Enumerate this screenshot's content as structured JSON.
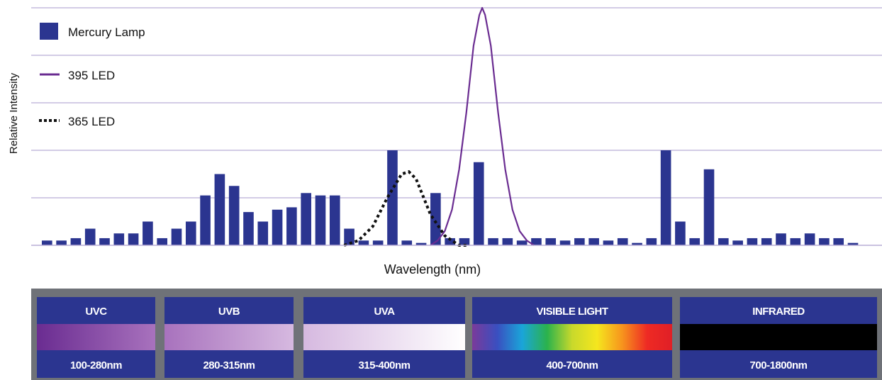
{
  "chart_data": {
    "type": "bar",
    "title": "",
    "ylabel": "Relative Intensity",
    "xlabel": "Wavelength (nm)",
    "ylim": [
      0,
      1
    ],
    "grid": true,
    "legend_position": "top-left",
    "series": [
      {
        "name": "Mercury Lamp",
        "kind": "bar",
        "color": "#2b3590",
        "values": [
          0.02,
          0.02,
          0.03,
          0.07,
          0.03,
          0.05,
          0.05,
          0.1,
          0.03,
          0.07,
          0.1,
          0.21,
          0.3,
          0.25,
          0.14,
          0.1,
          0.15,
          0.16,
          0.22,
          0.21,
          0.21,
          0.07,
          0.02,
          0.02,
          0.4,
          0.02,
          0.01,
          0.22,
          0.03,
          0.03,
          0.35,
          0.03,
          0.03,
          0.02,
          0.03,
          0.03,
          0.02,
          0.03,
          0.03,
          0.02,
          0.03,
          0.01,
          0.03,
          0.4,
          0.1,
          0.03,
          0.32,
          0.03,
          0.02,
          0.03,
          0.03,
          0.05,
          0.03,
          0.05,
          0.03,
          0.03,
          0.01
        ]
      },
      {
        "name": "395 LED",
        "kind": "line",
        "color": "#6a2c91",
        "points": [
          [
            27.0,
            0.0
          ],
          [
            27.5,
            0.02
          ],
          [
            28.0,
            0.06
          ],
          [
            28.5,
            0.15
          ],
          [
            29.0,
            0.32
          ],
          [
            29.5,
            0.56
          ],
          [
            30.0,
            0.84
          ],
          [
            30.4,
            0.97
          ],
          [
            30.6,
            1.0
          ],
          [
            30.8,
            0.97
          ],
          [
            31.2,
            0.84
          ],
          [
            31.7,
            0.56
          ],
          [
            32.2,
            0.32
          ],
          [
            32.7,
            0.15
          ],
          [
            33.2,
            0.06
          ],
          [
            33.7,
            0.02
          ],
          [
            34.2,
            0.0
          ]
        ]
      },
      {
        "name": "365 LED",
        "kind": "dotted",
        "color": "#111111",
        "points": [
          [
            21.0,
            0.0
          ],
          [
            22.0,
            0.02
          ],
          [
            23.0,
            0.08
          ],
          [
            24.0,
            0.2
          ],
          [
            25.0,
            0.3
          ],
          [
            25.5,
            0.31
          ],
          [
            26.0,
            0.28
          ],
          [
            27.0,
            0.13
          ],
          [
            28.0,
            0.04
          ],
          [
            29.0,
            0.0
          ],
          [
            29.5,
            0.0
          ]
        ]
      }
    ]
  },
  "spectrum": {
    "bands": [
      {
        "name": "UVC",
        "range": "100-280nm",
        "gradient": [
          "#6a2c91",
          "#a872bd"
        ]
      },
      {
        "name": "UVB",
        "range": "280-315nm",
        "gradient": [
          "#a872bd",
          "#d6b9e0"
        ]
      },
      {
        "name": "UVA",
        "range": "315-400nm",
        "gradient": [
          "#d6b9e0",
          "#ffffff"
        ]
      },
      {
        "name": "VISIBLE LIGHT",
        "range": "400-700nm",
        "gradient": [
          "#7a3a9a",
          "#3a4fc0",
          "#1aa5d9",
          "#2bb24c",
          "#c9d92b",
          "#f5e61e",
          "#f7941d",
          "#ee2a24",
          "#e01f26"
        ]
      },
      {
        "name": "INFRARED",
        "range": "700-1800nm",
        "gradient": [
          "#000000",
          "#000000"
        ]
      }
    ],
    "bg_color": "#2b3590"
  }
}
